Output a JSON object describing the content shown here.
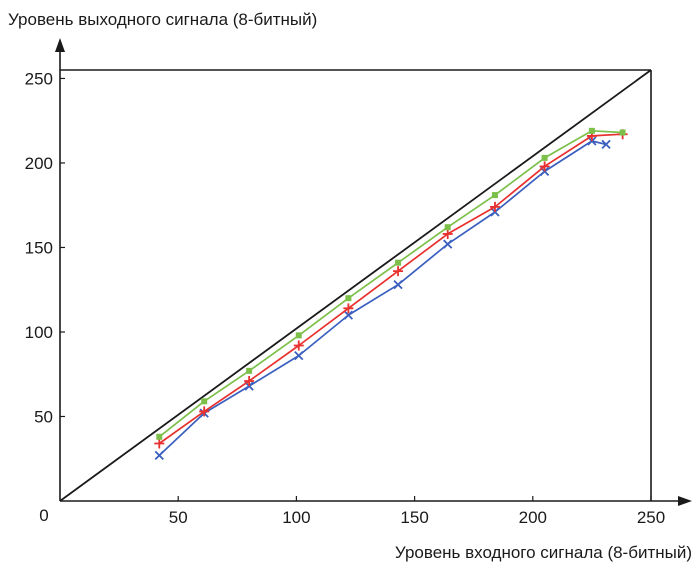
{
  "chart_data": {
    "type": "line",
    "ylabel": "Уровень выходного сигнала (8-битный)",
    "xlabel": "Уровень входного сигнала (8-битный)",
    "xlim": [
      0,
      250
    ],
    "ylim": [
      0,
      255
    ],
    "origin_label": "0",
    "xticks": [
      50,
      100,
      150,
      200,
      250
    ],
    "xtick_labels": [
      "50",
      "100",
      "150",
      "200",
      "250"
    ],
    "yticks": [
      50,
      100,
      150,
      200,
      250
    ],
    "ytick_labels": [
      "50",
      "100",
      "150",
      "200",
      "250"
    ],
    "grid": false,
    "reference_line": {
      "x": [
        0,
        250
      ],
      "y": [
        0,
        255
      ],
      "color": "#1a1a1a"
    },
    "series": [
      {
        "color": "#3a5fbf",
        "marker": "x",
        "x": [
          42,
          61,
          80,
          101,
          122,
          143,
          164,
          184,
          205,
          225,
          231
        ],
        "y": [
          27,
          52,
          68,
          86,
          110,
          128,
          152,
          171,
          195,
          213,
          211
        ]
      },
      {
        "color": "#e8302e",
        "marker": "plus",
        "x": [
          42,
          61,
          80,
          101,
          122,
          143,
          164,
          184,
          205,
          225,
          238
        ],
        "y": [
          34,
          53,
          71,
          92,
          114,
          136,
          158,
          174,
          198,
          216,
          217
        ]
      },
      {
        "color": "#7cc04a",
        "marker": "square",
        "x": [
          42,
          61,
          80,
          101,
          122,
          143,
          164,
          184,
          205,
          225,
          238
        ],
        "y": [
          38,
          59,
          77,
          98,
          120,
          141,
          162,
          181,
          203,
          219,
          218
        ]
      }
    ]
  }
}
